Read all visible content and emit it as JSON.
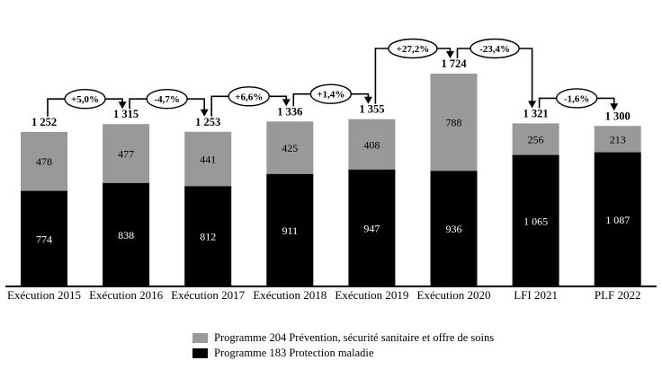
{
  "chart_data": {
    "type": "bar",
    "stacked": true,
    "title": "",
    "y_axis_visible": false,
    "grid": false,
    "legend_position": "bottom",
    "categories": [
      "Exécution 2015",
      "Exécution 2016",
      "Exécution 2017",
      "Exécution 2018",
      "Exécution 2019",
      "Exécution 2020",
      "LFI 2021",
      "PLF 2022"
    ],
    "series": [
      {
        "name": "Programme 204 Prévention, sécurité sanitaire et offre de soins",
        "color": "#999999",
        "label_color": "#000000",
        "values": [
          478,
          477,
          441,
          425,
          408,
          788,
          256,
          213
        ]
      },
      {
        "name": "Programme 183 Protection maladie",
        "color": "#000000",
        "label_color": "#ffffff",
        "values": [
          774,
          838,
          812,
          911,
          947,
          936,
          1065,
          1087
        ]
      }
    ],
    "totals": [
      1252,
      1315,
      1253,
      1336,
      1355,
      1724,
      1321,
      1300
    ],
    "change_labels": [
      "+5,0%",
      "-4,7%",
      "+6,6%",
      "+1,4%",
      "+27,2%",
      "-23,4%",
      "-1,6%"
    ],
    "ylim": [
      0,
      1800
    ],
    "colors": {
      "axis": "#000000",
      "connector": "#000000",
      "oval_fill": "#ffffff",
      "oval_stroke": "#000000",
      "text": "#000000"
    }
  }
}
